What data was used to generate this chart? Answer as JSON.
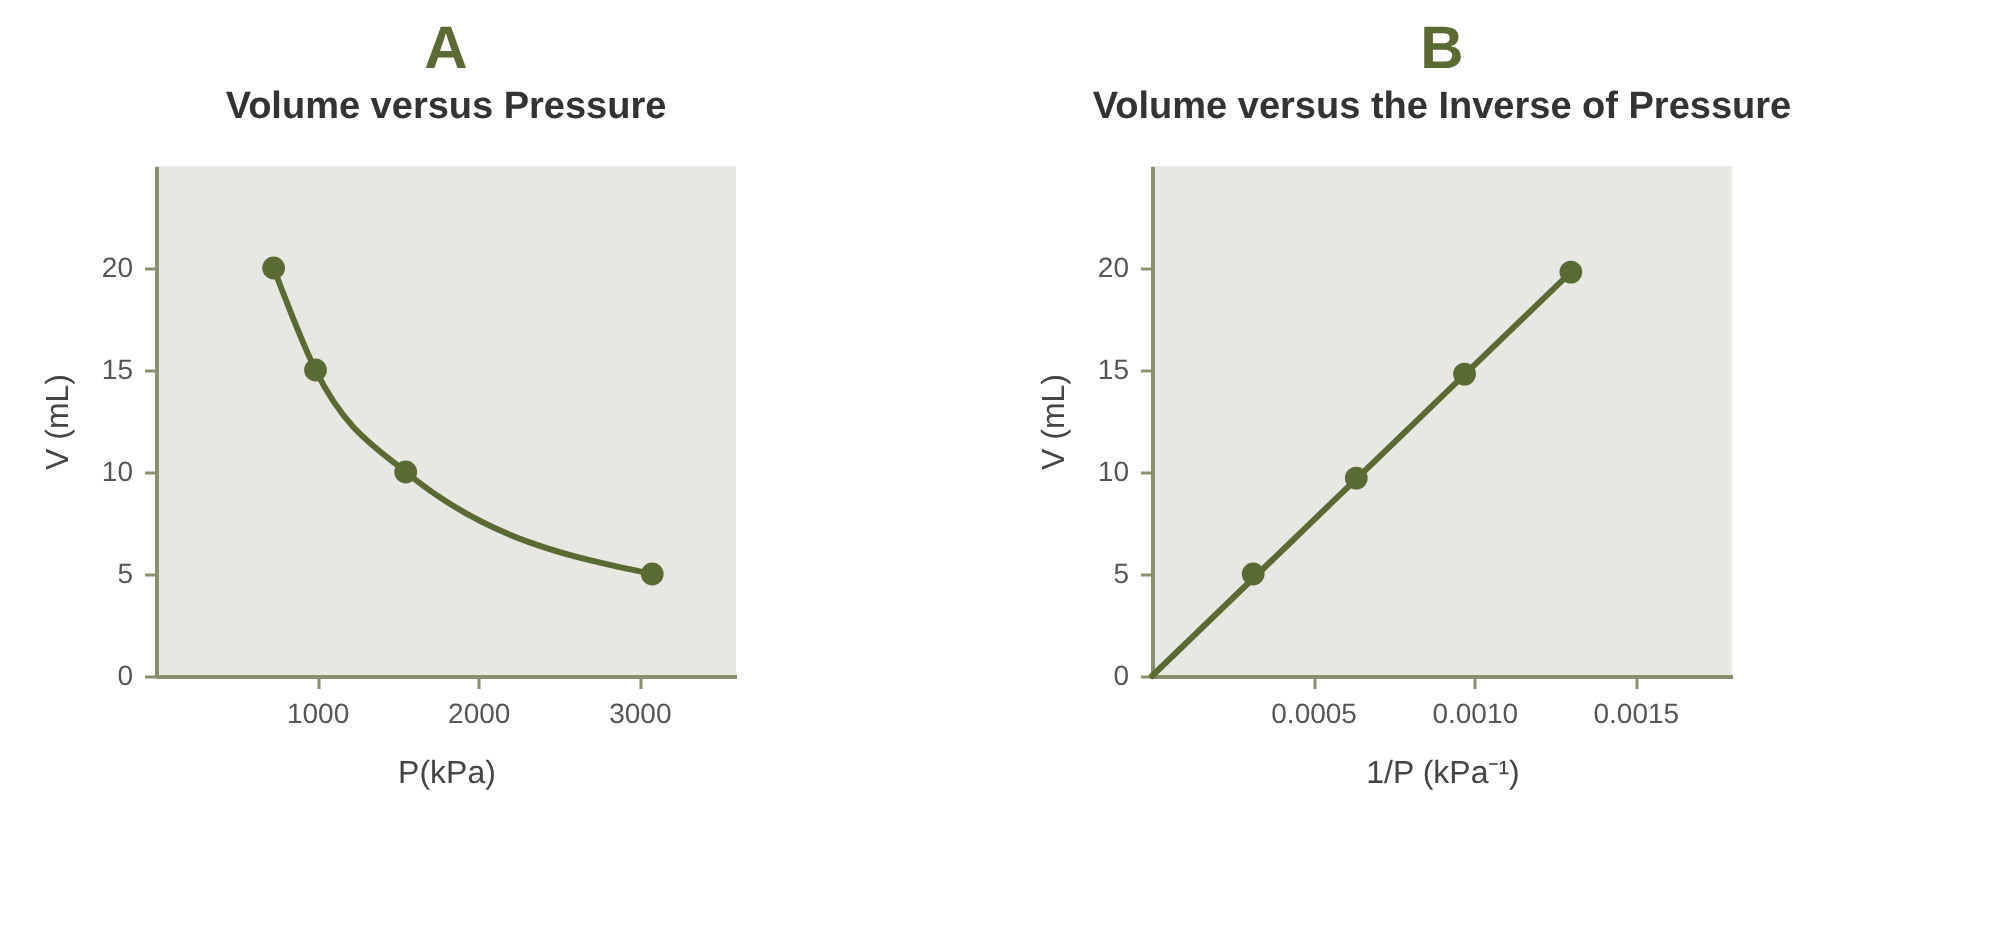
{
  "chart_data": [
    {
      "type": "line",
      "title": "A",
      "subtitle": "Volume versus Pressure",
      "xlabel": "P(kPa)",
      "ylabel": "V (mL)",
      "x": [
        730,
        990,
        1550,
        3080
      ],
      "series": [
        {
          "color": "#5a6b32",
          "values": [
            20,
            15,
            10,
            5
          ]
        }
      ],
      "xlim": [
        0,
        3600
      ],
      "xticks": [
        1000,
        2000,
        3000
      ],
      "ylim": [
        0,
        25
      ],
      "yticks": [
        0,
        5,
        10,
        15,
        20
      ],
      "marker": "circle",
      "grid": false
    },
    {
      "type": "line",
      "title": "B",
      "subtitle": "Volume versus the Inverse of Pressure",
      "xlabel": "1/P (kPa⁻¹)",
      "ylabel": "V (mL)",
      "series": [
        {
          "type": "line",
          "color": "#5a6b32",
          "x": [
            0,
            0.0013
          ],
          "values": [
            0,
            19.8
          ],
          "marker": "none"
        },
        {
          "type": "scatter",
          "color": "#5a6b32",
          "x": [
            0.000314,
            0.000634,
            0.00097,
            0.0013
          ],
          "values": [
            5,
            9.7,
            14.8,
            19.8
          ]
        }
      ],
      "xlim": [
        0,
        0.0018
      ],
      "xticks": [
        0.0005,
        {
          "value": 0.001,
          "label": "0.0010"
        },
        0.0015
      ],
      "ylim": [
        0,
        25
      ],
      "yticks": [
        0,
        5,
        10,
        15,
        20
      ],
      "marker": "circle",
      "grid": false
    }
  ]
}
